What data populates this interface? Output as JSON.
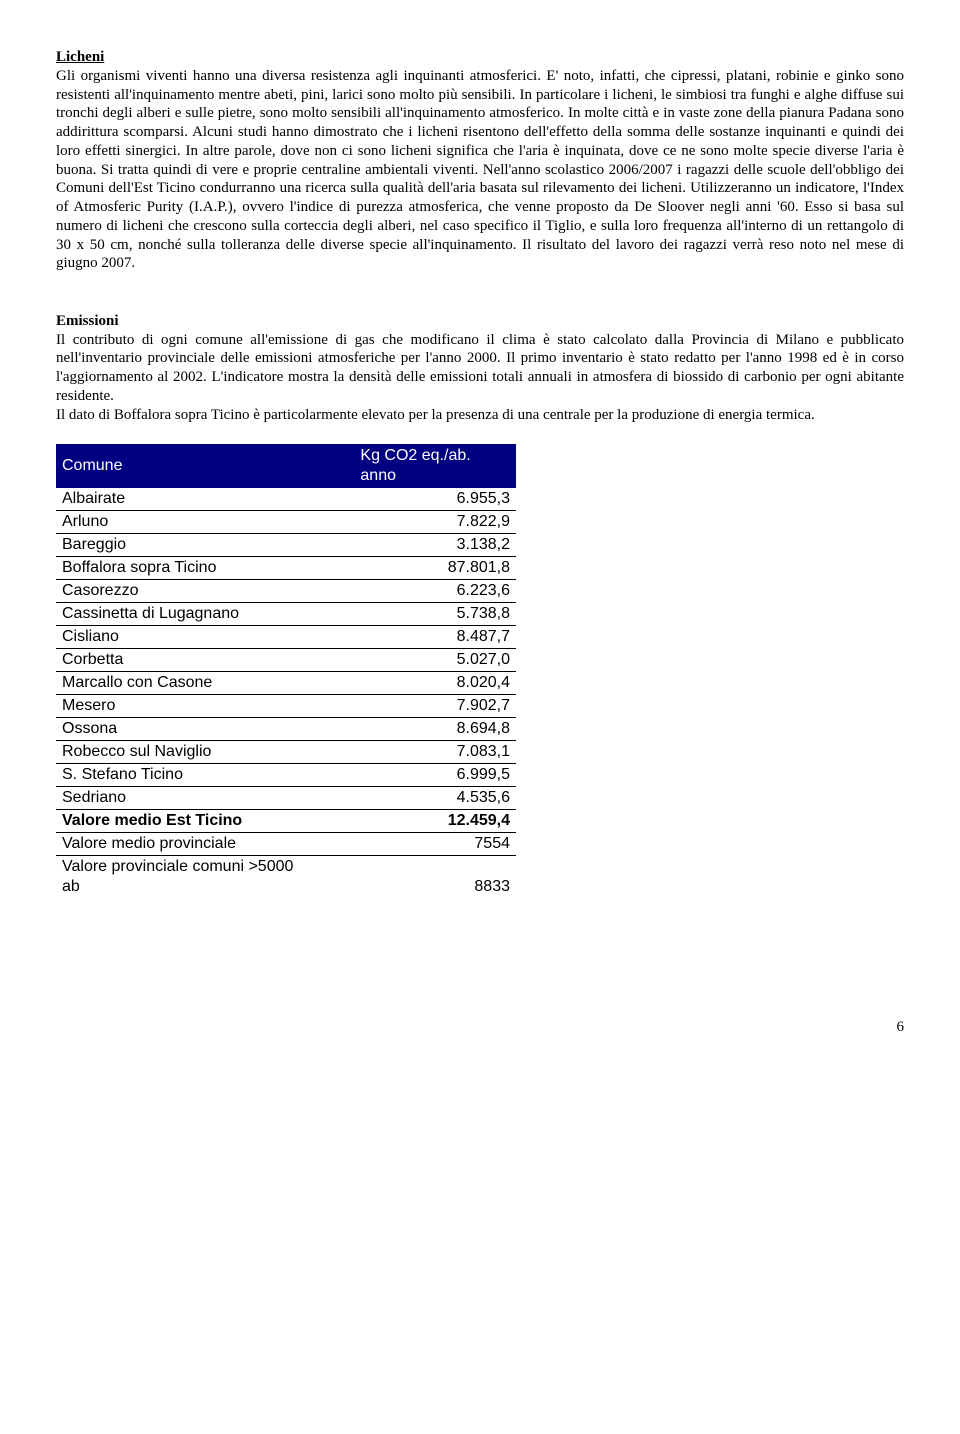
{
  "licheni": {
    "title": "Licheni",
    "body": "Gli organismi viventi hanno una diversa resistenza agli inquinanti atmosferici. E' noto, infatti, che cipressi, platani, robinie e ginko sono resistenti all'inquinamento mentre abeti, pini, larici sono molto più sensibili. In particolare i licheni, le simbiosi tra funghi e alghe diffuse sui tronchi degli alberi e sulle pietre, sono molto sensibili all'inquinamento atmosferico. In molte città e in vaste zone della pianura Padana sono addirittura scomparsi. Alcuni studi hanno dimostrato che i licheni risentono dell'effetto della somma delle sostanze inquinanti e quindi dei loro effetti sinergici. In altre parole, dove non ci sono licheni significa che l'aria è inquinata, dove ce ne sono molte specie diverse l'aria è buona. Si tratta quindi di vere e proprie centraline ambientali viventi. Nell'anno scolastico 2006/2007 i ragazzi delle scuole dell'obbligo dei Comuni dell'Est Ticino condurranno una ricerca sulla qualità dell'aria basata sul rilevamento dei licheni. Utilizzeranno un indicatore, l'Index of Atmosferic Purity (I.A.P.), ovvero l'indice di purezza atmosferica, che venne proposto da De Sloover negli anni '60. Esso si basa sul numero di licheni che crescono sulla corteccia degli alberi, nel caso specifico il Tiglio, e sulla loro frequenza all'interno di un rettangolo di 30 x 50 cm, nonché sulla tolleranza delle diverse specie all'inquinamento. Il risultato del lavoro dei ragazzi verrà reso noto nel mese di giugno 2007."
  },
  "emissioni": {
    "title": "Emissioni",
    "body1": "Il contributo di ogni comune all'emissione di gas che modificano il clima è stato calcolato dalla Provincia di Milano e pubblicato nell'inventario provinciale delle emissioni atmosferiche per l'anno 2000. Il primo inventario è stato redatto per l'anno 1998 ed è in corso l'aggiornamento al 2002. L'indicatore mostra la densità delle emissioni totali annuali in atmosfera di biossido di carbonio per ogni abitante residente.",
    "body2": "Il dato di Boffalora sopra Ticino è particolarmente elevato per la presenza di una centrale per la produzione di energia termica."
  },
  "table": {
    "header_bg": "#000080",
    "col1": "Comune",
    "col2": "Kg CO2 eq./ab. anno",
    "rows": [
      {
        "name": "Albairate",
        "value": "6.955,3",
        "bold": false
      },
      {
        "name": "Arluno",
        "value": "7.822,9",
        "bold": false
      },
      {
        "name": "Bareggio",
        "value": "3.138,2",
        "bold": false
      },
      {
        "name": "Boffalora sopra Ticino",
        "value": "87.801,8",
        "bold": false
      },
      {
        "name": "Casorezzo",
        "value": "6.223,6",
        "bold": false
      },
      {
        "name": "Cassinetta di Lugagnano",
        "value": "5.738,8",
        "bold": false
      },
      {
        "name": "Cisliano",
        "value": "8.487,7",
        "bold": false
      },
      {
        "name": "Corbetta",
        "value": "5.027,0",
        "bold": false
      },
      {
        "name": "Marcallo con Casone",
        "value": "8.020,4",
        "bold": false
      },
      {
        "name": "Mesero",
        "value": "7.902,7",
        "bold": false
      },
      {
        "name": "Ossona",
        "value": "8.694,8",
        "bold": false
      },
      {
        "name": "Robecco sul Naviglio",
        "value": "7.083,1",
        "bold": false
      },
      {
        "name": "S. Stefano Ticino",
        "value": "6.999,5",
        "bold": false
      },
      {
        "name": "Sedriano",
        "value": "4.535,6",
        "bold": false
      },
      {
        "name": "Valore medio Est Ticino",
        "value": "12.459,4",
        "bold": true
      },
      {
        "name": "Valore medio provinciale",
        "value": "7554",
        "bold": false
      },
      {
        "name": "Valore provinciale comuni >5000 ab",
        "value": "8833",
        "bold": false,
        "last": true
      }
    ]
  },
  "page_number": "6"
}
